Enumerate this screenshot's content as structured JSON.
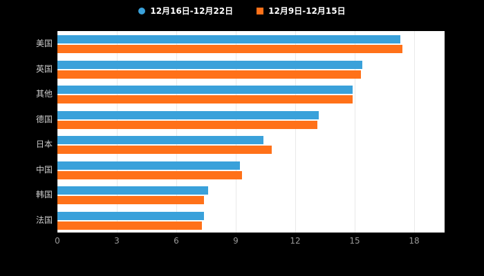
{
  "colors": {
    "background": "#000000",
    "plot_background": "#FFFFFF",
    "grid": "#E9E9E9",
    "axis_label": "#999999",
    "category_label": "#CCCCCC",
    "legend_text": "#FFFFFF",
    "series1": "#3AA1DA",
    "series2": "#FF7119"
  },
  "legend": {
    "series1_label": "12月16日-12月22日",
    "series2_label": "12月9日-12月15日"
  },
  "chart_data": {
    "type": "bar",
    "orientation": "horizontal",
    "title": "",
    "xlabel": "",
    "ylabel": "",
    "categories": [
      "美国",
      "英国",
      "其他",
      "德国",
      "日本",
      "中国",
      "韩国",
      "法国"
    ],
    "series": [
      {
        "name": "12月16日-12月22日",
        "color": "#3AA1DA",
        "marker": "circle",
        "values": [
          17.3,
          15.4,
          14.9,
          13.2,
          10.4,
          9.2,
          7.6,
          7.4
        ]
      },
      {
        "name": "12月9日-12月15日",
        "color": "#FF7119",
        "marker": "square",
        "values": [
          17.4,
          15.3,
          14.9,
          13.1,
          10.8,
          9.3,
          7.4,
          7.3
        ]
      }
    ],
    "x_ticks": [
      0,
      3,
      6,
      9,
      12,
      15,
      18
    ],
    "xlim": [
      0,
      18
    ],
    "grid": true,
    "legend_position": "top"
  }
}
